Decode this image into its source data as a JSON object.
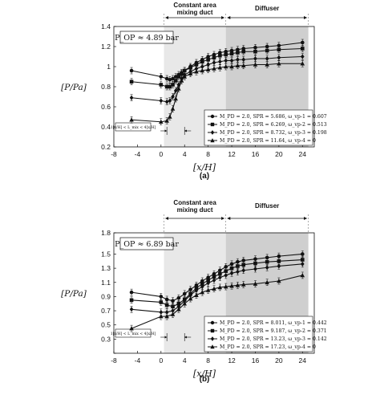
{
  "chart_data": [
    {
      "type": "line",
      "caption": "(a)",
      "pop_label": "P_OP ≈ 4.89 bar",
      "xlabel": "[x/H]",
      "ylabel": "[P/Pa]",
      "xlim": [
        -8,
        26
      ],
      "ylim": [
        0.2,
        1.4
      ],
      "xticks": [
        -8,
        -4,
        0,
        4,
        8,
        12,
        16,
        20,
        24
      ],
      "yticks": [
        0.2,
        0.4,
        0.6,
        0.8,
        1.0,
        1.2,
        1.4
      ],
      "ytick_labels": [
        "0.2",
        "0.4",
        "0.6",
        "0.8",
        "1",
        "1.2",
        "1.4"
      ],
      "xtick_labels": [
        "-8",
        "-4",
        "0",
        "4",
        "8",
        "12",
        "16",
        "20",
        "24"
      ],
      "regions": [
        {
          "label": "Constant area mixing duct",
          "x0": 0.5,
          "x1": 11
        },
        {
          "label": "Diffuser",
          "x0": 11,
          "x1": 25
        }
      ],
      "annotation": "1[x/H] < L_mix < 4[x/H]",
      "series": [
        {
          "name": "M_PD = 2.0, SPR = 5.686, ω_vp-1 = 0.607",
          "marker": "circle",
          "x": [
            -5,
            0,
            1,
            1.5,
            2,
            2.5,
            3,
            3.5,
            4,
            5,
            6,
            7,
            8,
            9,
            10,
            11,
            12,
            13,
            14,
            16,
            18,
            20,
            24
          ],
          "y": [
            0.96,
            0.9,
            0.88,
            0.87,
            0.88,
            0.9,
            0.92,
            0.94,
            0.96,
            1.0,
            1.04,
            1.07,
            1.1,
            1.12,
            1.14,
            1.15,
            1.16,
            1.17,
            1.18,
            1.19,
            1.2,
            1.21,
            1.24
          ]
        },
        {
          "name": "M_PD = 2.0, SPR = 6.269, ω_vp-2 = 0.513",
          "marker": "square",
          "x": [
            -5,
            0,
            1,
            1.5,
            2,
            2.5,
            3,
            3.5,
            4,
            5,
            6,
            7,
            8,
            9,
            10,
            11,
            12,
            13,
            14,
            16,
            18,
            20,
            24
          ],
          "y": [
            0.85,
            0.82,
            0.8,
            0.8,
            0.82,
            0.86,
            0.9,
            0.93,
            0.96,
            0.99,
            1.02,
            1.05,
            1.07,
            1.09,
            1.11,
            1.12,
            1.13,
            1.14,
            1.15,
            1.15,
            1.16,
            1.17,
            1.18
          ]
        },
        {
          "name": "M_PD = 2.0, SPR = 8.732, ω_vp-3 = 0.198",
          "marker": "diamond",
          "x": [
            -5,
            0,
            1,
            1.5,
            2,
            2.5,
            3,
            3.5,
            4,
            5,
            6,
            7,
            8,
            9,
            10,
            11,
            12,
            13,
            14,
            16,
            18,
            20,
            24
          ],
          "y": [
            0.69,
            0.66,
            0.65,
            0.66,
            0.7,
            0.76,
            0.82,
            0.88,
            0.92,
            0.95,
            0.98,
            1.0,
            1.02,
            1.04,
            1.05,
            1.06,
            1.06,
            1.07,
            1.07,
            1.08,
            1.08,
            1.09,
            1.1
          ]
        },
        {
          "name": "M_PD = 2.0, SPR = 11.64, ω_vp-4 = 0",
          "marker": "triangle",
          "x": [
            -5,
            0,
            1,
            1.5,
            2,
            2.5,
            3,
            3.5,
            4,
            5,
            6,
            7,
            8,
            9,
            10,
            11,
            12,
            13,
            14,
            16,
            18,
            20,
            24
          ],
          "y": [
            0.47,
            0.45,
            0.46,
            0.5,
            0.58,
            0.68,
            0.78,
            0.86,
            0.9,
            0.93,
            0.95,
            0.96,
            0.97,
            0.98,
            0.99,
            1.0,
            1.0,
            1.01,
            1.01,
            1.02,
            1.02,
            1.03,
            1.03
          ]
        }
      ]
    },
    {
      "type": "line",
      "caption": "(b)",
      "pop_label": "P_OP ≈ 6.89 bar",
      "xlabel": "[x/H]",
      "ylabel": "[P/Pa]",
      "xlim": [
        -8,
        26
      ],
      "ylim": [
        0.1,
        1.8
      ],
      "xticks": [
        -8,
        -4,
        0,
        4,
        8,
        12,
        16,
        20,
        24
      ],
      "yticks": [
        0.1,
        0.3,
        0.5,
        0.7,
        0.9,
        1.1,
        1.3,
        1.5,
        1.8
      ],
      "ytick_labels": [
        "",
        "0.3",
        "0.5",
        "0.7",
        "0.9",
        "1.1",
        "1.3",
        "1.5",
        "1.8"
      ],
      "xtick_labels": [
        "-8",
        "-4",
        "0",
        "4",
        "8",
        "12",
        "16",
        "20",
        "24"
      ],
      "regions": [
        {
          "label": "Constant area mixing duct",
          "x0": 0.5,
          "x1": 11
        },
        {
          "label": "Diffuser",
          "x0": 11,
          "x1": 25
        }
      ],
      "annotation": "1[x/H] < L_mix < 4[x/H]",
      "series": [
        {
          "name": "M_PD = 2.0, SPR = 8.011, ω_vp-1 = 0.442",
          "marker": "circle",
          "x": [
            -5,
            0,
            1,
            2,
            3,
            4,
            5,
            6,
            7,
            8,
            9,
            10,
            11,
            12,
            13,
            14,
            16,
            18,
            20,
            24
          ],
          "y": [
            0.96,
            0.9,
            0.86,
            0.84,
            0.88,
            0.94,
            1.0,
            1.06,
            1.12,
            1.17,
            1.22,
            1.27,
            1.32,
            1.36,
            1.39,
            1.41,
            1.43,
            1.45,
            1.47,
            1.5
          ]
        },
        {
          "name": "M_PD = 2.0, SPR = 9.187, ω_vp-2 = 0.371",
          "marker": "square",
          "x": [
            -5,
            0,
            1,
            2,
            3,
            4,
            5,
            6,
            7,
            8,
            9,
            10,
            11,
            12,
            13,
            14,
            16,
            18,
            20,
            24
          ],
          "y": [
            0.85,
            0.82,
            0.78,
            0.76,
            0.8,
            0.86,
            0.94,
            1.02,
            1.08,
            1.13,
            1.18,
            1.22,
            1.26,
            1.3,
            1.33,
            1.35,
            1.37,
            1.39,
            1.4,
            1.42
          ]
        },
        {
          "name": "M_PD = 2.0, SPR = 13.23, ω_vp-3 = 0.142",
          "marker": "diamond",
          "x": [
            -5,
            0,
            1,
            2,
            3,
            4,
            5,
            6,
            7,
            8,
            9,
            10,
            11,
            12,
            13,
            14,
            16,
            18,
            20,
            24
          ],
          "y": [
            0.72,
            0.68,
            0.68,
            0.7,
            0.76,
            0.84,
            0.92,
            0.99,
            1.04,
            1.09,
            1.13,
            1.17,
            1.2,
            1.23,
            1.25,
            1.27,
            1.29,
            1.31,
            1.33,
            1.36
          ]
        },
        {
          "name": "M_PD = 2.0, SPR = 17.23, ω_vp-4 = 0",
          "marker": "triangle",
          "x": [
            -5,
            0,
            1,
            2,
            3,
            4,
            5,
            6,
            7,
            8,
            9,
            10,
            11,
            12,
            13,
            14,
            16,
            18,
            20,
            24
          ],
          "y": [
            0.45,
            0.62,
            0.62,
            0.65,
            0.72,
            0.8,
            0.87,
            0.92,
            0.96,
            0.99,
            1.01,
            1.03,
            1.04,
            1.05,
            1.06,
            1.07,
            1.08,
            1.1,
            1.12,
            1.2
          ]
        }
      ]
    }
  ]
}
